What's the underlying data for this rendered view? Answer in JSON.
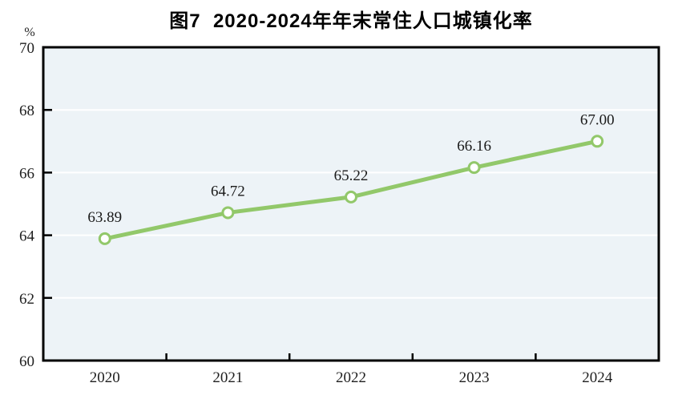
{
  "chart_data": {
    "type": "line",
    "title": "图7  2020-2024年年末常住人口城镇化率",
    "unit_label": "%",
    "categories": [
      "2020",
      "2021",
      "2022",
      "2023",
      "2024"
    ],
    "values": [
      63.89,
      64.72,
      65.22,
      66.16,
      67.0
    ],
    "value_labels": [
      "63.89",
      "64.72",
      "65.22",
      "66.16",
      "67.00"
    ],
    "ylim": [
      60,
      70
    ],
    "yticks": [
      60,
      62,
      64,
      66,
      68,
      70
    ],
    "grid": true,
    "legend_position": "none",
    "colors": {
      "line": "#92c86a",
      "marker_fill": "#ffffff",
      "plot_bg": "#edf3f7",
      "grid": "#ffffff",
      "axis": "#000000",
      "text": "#1f1f1f"
    }
  }
}
